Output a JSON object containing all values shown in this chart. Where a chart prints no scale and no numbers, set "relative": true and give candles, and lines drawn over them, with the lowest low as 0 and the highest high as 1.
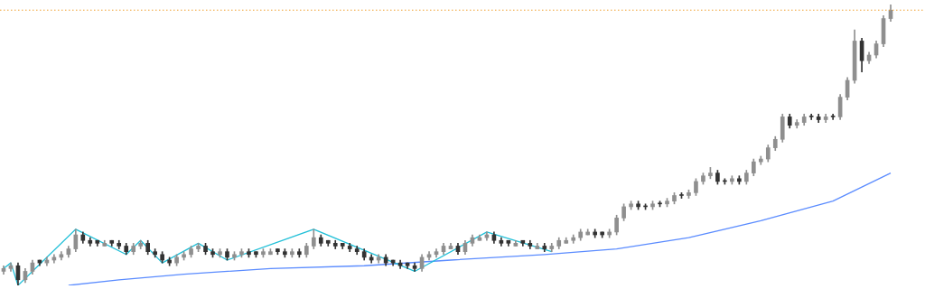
{
  "chart_data": {
    "type": "candlestick",
    "relative": true,
    "colors": [
      "#8f8f8f",
      "#8f8f8f",
      "#333333",
      "#8f8f8f",
      "#8f8f8f",
      "#333333",
      "#8f8f8f",
      "#8f8f8f",
      "#8f8f8f",
      "#8f8f8f",
      "#8f8f8f",
      "#333333",
      "#333333",
      "#333333",
      "#8f8f8f",
      "#333333",
      "#333333",
      "#333333",
      "#8f8f8f",
      "#8f8f8f",
      "#333333",
      "#333333",
      "#333333",
      "#333333",
      "#8f8f8f",
      "#8f8f8f",
      "#8f8f8f",
      "#8f8f8f",
      "#333333",
      "#333333",
      "#8f8f8f",
      "#333333",
      "#8f8f8f",
      "#8f8f8f",
      "#333333",
      "#333333",
      "#8f8f8f",
      "#8f8f8f",
      "#333333",
      "#333333",
      "#8f8f8f",
      "#333333",
      "#8f8f8f",
      "#8f8f8f",
      "#333333",
      "#333333",
      "#333333",
      "#333333",
      "#333333",
      "#333333",
      "#333333",
      "#333333",
      "#8f8f8f",
      "#333333",
      "#333333",
      "#333333",
      "#333333",
      "#333333",
      "#8f8f8f",
      "#8f8f8f",
      "#8f8f8f",
      "#8f8f8f",
      "#8f8f8f",
      "#333333",
      "#8f8f8f",
      "#8f8f8f",
      "#8f8f8f",
      "#8f8f8f",
      "#333333",
      "#333333",
      "#333333",
      "#8f8f8f",
      "#333333",
      "#333333",
      "#8f8f8f",
      "#333333",
      "#8f8f8f",
      "#8f8f8f",
      "#8f8f8f",
      "#8f8f8f",
      "#8f8f8f",
      "#8f8f8f",
      "#333333",
      "#333333",
      "#8f8f8f",
      "#8f8f8f",
      "#8f8f8f",
      "#8f8f8f",
      "#333333",
      "#333333",
      "#8f8f8f",
      "#333333",
      "#8f8f8f",
      "#8f8f8f",
      "#333333",
      "#8f8f8f",
      "#8f8f8f",
      "#8f8f8f",
      "#8f8f8f",
      "#333333",
      "#333333",
      "#8f8f8f",
      "#333333",
      "#8f8f8f",
      "#8f8f8f",
      "#8f8f8f",
      "#8f8f8f",
      "#8f8f8f",
      "#8f8f8f",
      "#333333",
      "#8f8f8f",
      "#8f8f8f",
      "#333333",
      "#333333",
      "#8f8f8f",
      "#333333",
      "#8f8f8f",
      "#8f8f8f",
      "#8f8f8f",
      "#333333",
      "#8f8f8f",
      "#8f8f8f",
      "#8f8f8f",
      "#8f8f8f"
    ],
    "categories": [
      null,
      null,
      null,
      null,
      null,
      null,
      null,
      null,
      null,
      null,
      null,
      null,
      null,
      null,
      null,
      null,
      null,
      null,
      null,
      null,
      null,
      null,
      null,
      null,
      null,
      null,
      null,
      null,
      null,
      null,
      null,
      null,
      null,
      null,
      null,
      null,
      null,
      null,
      null,
      null,
      null,
      null,
      null,
      null,
      null,
      null,
      null,
      null,
      null,
      null,
      null,
      null,
      null,
      null,
      null,
      null,
      null,
      null,
      null,
      null,
      null,
      null,
      null,
      null,
      null,
      null,
      null,
      null,
      null,
      null,
      null,
      null,
      null,
      null,
      null,
      null,
      null,
      null,
      null,
      null,
      null,
      null,
      null,
      null,
      null,
      null,
      null,
      null,
      null,
      null,
      null,
      null,
      null,
      null,
      null,
      null,
      null,
      null,
      null,
      null,
      null,
      null,
      null,
      null,
      null,
      null,
      null,
      null,
      null,
      null,
      null,
      null,
      null,
      null,
      null,
      null,
      null,
      null,
      null,
      null,
      null,
      null,
      null,
      null
    ],
    "ohlc": [
      [
        0.05,
        0.07,
        0.04,
        0.06
      ],
      [
        0.06,
        0.08,
        0.05,
        0.07
      ],
      [
        0.07,
        0.08,
        0,
        0.02
      ],
      [
        0.02,
        0.06,
        0.01,
        0.05
      ],
      [
        0.05,
        0.09,
        0.04,
        0.08
      ],
      [
        0.09,
        0.09,
        0.07,
        0.08
      ],
      [
        0.08,
        0.1,
        0.07,
        0.09
      ],
      [
        0.09,
        0.11,
        0.08,
        0.1
      ],
      [
        0.1,
        0.12,
        0.09,
        0.11
      ],
      [
        0.11,
        0.14,
        0.1,
        0.13
      ],
      [
        0.13,
        0.2,
        0.12,
        0.18
      ],
      [
        0.18,
        0.19,
        0.15,
        0.16
      ],
      [
        0.16,
        0.17,
        0.14,
        0.15
      ],
      [
        0.16,
        0.16,
        0.14,
        0.15
      ],
      [
        0.14,
        0.16,
        0.14,
        0.15
      ],
      [
        0.16,
        0.16,
        0.14,
        0.15
      ],
      [
        0.15,
        0.16,
        0.13,
        0.14
      ],
      [
        0.14,
        0.15,
        0.11,
        0.12
      ],
      [
        0.12,
        0.15,
        0.11,
        0.14
      ],
      [
        0.14,
        0.16,
        0.13,
        0.15
      ],
      [
        0.15,
        0.16,
        0.11,
        0.12
      ],
      [
        0.12,
        0.13,
        0.1,
        0.11
      ],
      [
        0.11,
        0.12,
        0.08,
        0.09
      ],
      [
        0.09,
        0.1,
        0.07,
        0.08
      ],
      [
        0.08,
        0.11,
        0.07,
        0.1
      ],
      [
        0.1,
        0.12,
        0.09,
        0.11
      ],
      [
        0.11,
        0.14,
        0.1,
        0.13
      ],
      [
        0.13,
        0.15,
        0.12,
        0.14
      ],
      [
        0.14,
        0.15,
        0.11,
        0.12
      ],
      [
        0.12,
        0.13,
        0.1,
        0.11
      ],
      [
        0.11,
        0.13,
        0.1,
        0.12
      ],
      [
        0.12,
        0.13,
        0.09,
        0.1
      ],
      [
        0.1,
        0.12,
        0.09,
        0.11
      ],
      [
        0.11,
        0.13,
        0.1,
        0.12
      ],
      [
        0.12,
        0.13,
        0.1,
        0.11
      ],
      [
        0.12,
        0.12,
        0.1,
        0.11
      ],
      [
        0.11,
        0.13,
        0.1,
        0.12
      ],
      [
        0.11,
        0.13,
        0.11,
        0.12
      ],
      [
        0.13,
        0.13,
        0.11,
        0.12
      ],
      [
        0.12,
        0.13,
        0.1,
        0.11
      ],
      [
        0.11,
        0.13,
        0.1,
        0.12
      ],
      [
        0.12,
        0.13,
        0.1,
        0.11
      ],
      [
        0.11,
        0.15,
        0.1,
        0.14
      ],
      [
        0.14,
        0.2,
        0.13,
        0.17
      ],
      [
        0.17,
        0.18,
        0.14,
        0.15
      ],
      [
        0.16,
        0.16,
        0.14,
        0.15
      ],
      [
        0.15,
        0.16,
        0.13,
        0.14
      ],
      [
        0.15,
        0.15,
        0.13,
        0.14
      ],
      [
        0.14,
        0.15,
        0.12,
        0.13
      ],
      [
        0.13,
        0.14,
        0.11,
        0.12
      ],
      [
        0.12,
        0.13,
        0.09,
        0.1
      ],
      [
        0.1,
        0.11,
        0.08,
        0.09
      ],
      [
        0.09,
        0.11,
        0.08,
        0.1
      ],
      [
        0.1,
        0.11,
        0.07,
        0.08
      ],
      [
        0.09,
        0.09,
        0.07,
        0.08
      ],
      [
        0.08,
        0.09,
        0.06,
        0.07
      ],
      [
        0.08,
        0.08,
        0.06,
        0.07
      ],
      [
        0.07,
        0.08,
        0.05,
        0.06
      ],
      [
        0.06,
        0.11,
        0.05,
        0.1
      ],
      [
        0.1,
        0.12,
        0.09,
        0.11
      ],
      [
        0.11,
        0.13,
        0.1,
        0.12
      ],
      [
        0.12,
        0.15,
        0.11,
        0.14
      ],
      [
        0.13,
        0.15,
        0.13,
        0.14
      ],
      [
        0.14,
        0.15,
        0.11,
        0.12
      ],
      [
        0.12,
        0.16,
        0.11,
        0.15
      ],
      [
        0.15,
        0.18,
        0.14,
        0.17
      ],
      [
        0.16,
        0.18,
        0.16,
        0.17
      ],
      [
        0.17,
        0.19,
        0.16,
        0.18
      ],
      [
        0.18,
        0.19,
        0.15,
        0.16
      ],
      [
        0.16,
        0.17,
        0.14,
        0.15
      ],
      [
        0.16,
        0.16,
        0.14,
        0.15
      ],
      [
        0.14,
        0.16,
        0.14,
        0.15
      ],
      [
        0.16,
        0.16,
        0.14,
        0.15
      ],
      [
        0.15,
        0.16,
        0.13,
        0.14
      ],
      [
        0.13,
        0.15,
        0.13,
        0.14
      ],
      [
        0.14,
        0.15,
        0.12,
        0.13
      ],
      [
        0.13,
        0.15,
        0.12,
        0.14
      ],
      [
        0.14,
        0.17,
        0.13,
        0.16
      ],
      [
        0.15,
        0.17,
        0.15,
        0.16
      ],
      [
        0.16,
        0.18,
        0.15,
        0.17
      ],
      [
        0.17,
        0.2,
        0.16,
        0.19
      ],
      [
        0.18,
        0.2,
        0.18,
        0.19
      ],
      [
        0.19,
        0.2,
        0.17,
        0.18
      ],
      [
        0.19,
        0.19,
        0.17,
        0.18
      ],
      [
        0.18,
        0.2,
        0.17,
        0.19
      ],
      [
        0.19,
        0.25,
        0.18,
        0.24
      ],
      [
        0.24,
        0.29,
        0.23,
        0.28
      ],
      [
        0.28,
        0.3,
        0.27,
        0.29
      ],
      [
        0.29,
        0.3,
        0.27,
        0.28
      ],
      [
        0.28,
        0.29,
        0.27,
        0.28
      ],
      [
        0.28,
        0.3,
        0.27,
        0.29
      ],
      [
        0.29,
        0.3,
        0.28,
        0.29
      ],
      [
        0.29,
        0.31,
        0.28,
        0.3
      ],
      [
        0.3,
        0.33,
        0.29,
        0.32
      ],
      [
        0.32,
        0.33,
        0.31,
        0.32
      ],
      [
        0.32,
        0.34,
        0.31,
        0.33
      ],
      [
        0.33,
        0.38,
        0.32,
        0.37
      ],
      [
        0.37,
        0.4,
        0.36,
        0.39
      ],
      [
        0.39,
        0.42,
        0.38,
        0.4
      ],
      [
        0.4,
        0.41,
        0.36,
        0.37
      ],
      [
        0.37,
        0.38,
        0.36,
        0.37
      ],
      [
        0.37,
        0.39,
        0.36,
        0.38
      ],
      [
        0.38,
        0.39,
        0.36,
        0.37
      ],
      [
        0.37,
        0.41,
        0.36,
        0.4
      ],
      [
        0.4,
        0.45,
        0.39,
        0.44
      ],
      [
        0.44,
        0.46,
        0.43,
        0.45
      ],
      [
        0.45,
        0.5,
        0.44,
        0.49
      ],
      [
        0.49,
        0.53,
        0.48,
        0.52
      ],
      [
        0.52,
        0.61,
        0.51,
        0.6
      ],
      [
        0.6,
        0.61,
        0.56,
        0.57
      ],
      [
        0.57,
        0.59,
        0.56,
        0.58
      ],
      [
        0.58,
        0.61,
        0.57,
        0.6
      ],
      [
        0.6,
        0.61,
        0.59,
        0.6
      ],
      [
        0.6,
        0.61,
        0.58,
        0.59
      ],
      [
        0.59,
        0.61,
        0.58,
        0.6
      ],
      [
        0.6,
        0.61,
        0.59,
        0.6
      ],
      [
        0.6,
        0.68,
        0.59,
        0.67
      ],
      [
        0.67,
        0.74,
        0.66,
        0.73
      ],
      [
        0.73,
        0.91,
        0.72,
        0.87
      ],
      [
        0.87,
        0.88,
        0.76,
        0.8
      ],
      [
        0.8,
        0.83,
        0.79,
        0.82
      ],
      [
        0.82,
        0.87,
        0.81,
        0.86
      ],
      [
        0.86,
        0.96,
        0.85,
        0.95
      ],
      [
        0.95,
        1,
        0.94,
        0.98
      ]
    ],
    "series": [
      {
        "type": "line",
        "color": "#22c0d8",
        "values": [
          0.06,
          0.08,
          0,
          null,
          null,
          null,
          null,
          null,
          null,
          null,
          0.2,
          null,
          null,
          null,
          null,
          null,
          null,
          0.11,
          null,
          0.16,
          null,
          null,
          0.08,
          null,
          null,
          null,
          null,
          0.15,
          null,
          null,
          null,
          0.09,
          null,
          null,
          null,
          null,
          null,
          null,
          null,
          null,
          null,
          null,
          null,
          0.2,
          null,
          null,
          null,
          null,
          null,
          null,
          null,
          null,
          null,
          null,
          null,
          null,
          null,
          0.05,
          null,
          null,
          null,
          null,
          null,
          null,
          null,
          null,
          null,
          0.19,
          null,
          null,
          null,
          null,
          null,
          null,
          null,
          null,
          0.12,
          null,
          null,
          null,
          null,
          null,
          null,
          null,
          null,
          null,
          null,
          null,
          null,
          null,
          null,
          null,
          null,
          null,
          null,
          null,
          null,
          null,
          null,
          null,
          null,
          null,
          null,
          null,
          null,
          null,
          null,
          null,
          null,
          null,
          null,
          null,
          null,
          null,
          null,
          null,
          null,
          null,
          null,
          null,
          null,
          null,
          null,
          null
        ]
      },
      {
        "type": "line",
        "color": "#5b8cff",
        "values": [
          null,
          null,
          null,
          null,
          null,
          null,
          null,
          null,
          null,
          0,
          null,
          null,
          null,
          null,
          null,
          null,
          0.02,
          null,
          null,
          null,
          null,
          null,
          null,
          null,
          null,
          0.04,
          null,
          null,
          null,
          null,
          null,
          null,
          null,
          null,
          null,
          null,
          null,
          0.06,
          null,
          null,
          null,
          null,
          null,
          null,
          null,
          null,
          null,
          null,
          null,
          null,
          0.07,
          null,
          null,
          null,
          null,
          null,
          null,
          null,
          null,
          null,
          null,
          null,
          0.09,
          null,
          null,
          null,
          null,
          null,
          null,
          null,
          null,
          null,
          null,
          null,
          null,
          0.11,
          null,
          null,
          null,
          null,
          null,
          null,
          null,
          null,
          null,
          0.13,
          null,
          null,
          null,
          null,
          null,
          null,
          null,
          null,
          null,
          0.17,
          null,
          null,
          null,
          null,
          null,
          null,
          null,
          null,
          null,
          0.23,
          null,
          null,
          null,
          null,
          null,
          null,
          null,
          null,
          null,
          0.3,
          null,
          null,
          null,
          null,
          null,
          null,
          null,
          0.4
        ]
      }
    ],
    "ref_lines": [
      {
        "axis": "y",
        "value": 0.98,
        "color": "#f0a030",
        "line_style": "dotted"
      }
    ]
  }
}
